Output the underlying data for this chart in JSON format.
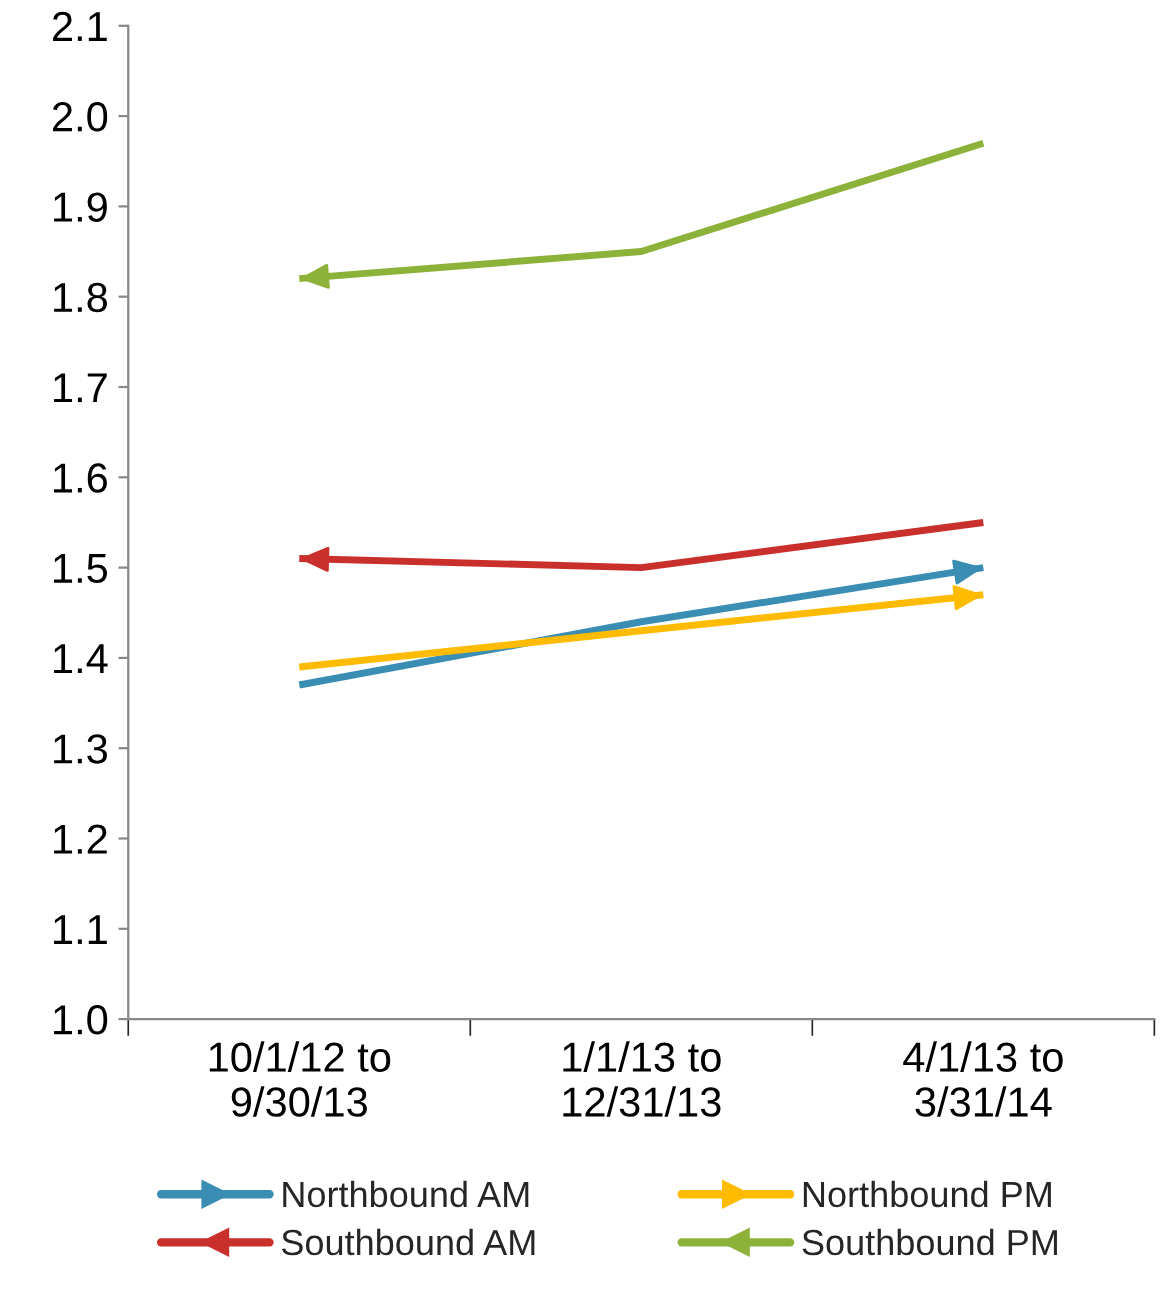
{
  "chart_data": {
    "type": "line",
    "categories": [
      "10/1/12 to\n9/30/13",
      "1/1/13 to\n12/31/13",
      "4/1/13 to\n3/31/14"
    ],
    "series": [
      {
        "name": "Northbound AM",
        "color": "#3a8db3",
        "x": [
          "10/1/12 to\n9/30/13",
          "1/1/13 to\n12/31/13",
          "4/1/13 to\n3/31/14"
        ],
        "values": [
          1.37,
          1.44,
          1.5
        ]
      },
      {
        "name": "Southbound AM",
        "color": "#c9302c",
        "x": [
          "4/1/13 to\n3/31/14",
          "1/1/13 to\n12/31/13",
          "10/1/12 to\n9/30/13"
        ],
        "values": [
          1.55,
          1.5,
          1.51
        ]
      },
      {
        "name": "Northbound PM",
        "color": "#ffbb00",
        "x": [
          "10/1/12 to\n9/30/13",
          "1/1/13 to\n12/31/13",
          "4/1/13 to\n3/31/14"
        ],
        "values": [
          1.39,
          1.43,
          1.47
        ]
      },
      {
        "name": "Southbound PM",
        "color": "#8cb23a",
        "x": [
          "4/1/13 to\n3/31/14",
          "1/1/13 to\n12/31/13",
          "10/1/12 to\n9/30/13"
        ],
        "values": [
          1.97,
          1.85,
          1.82
        ]
      }
    ],
    "ylim": [
      1.0,
      2.1
    ],
    "yticks": [
      {
        "value": 1.0,
        "label": "1.0"
      },
      1.1,
      1.2,
      1.3,
      1.4,
      1.5,
      1.6,
      1.7,
      1.8,
      1.9,
      {
        "value": 2.0,
        "label": "2.0"
      },
      2.1
    ],
    "grid": false,
    "legend": "bottom"
  }
}
